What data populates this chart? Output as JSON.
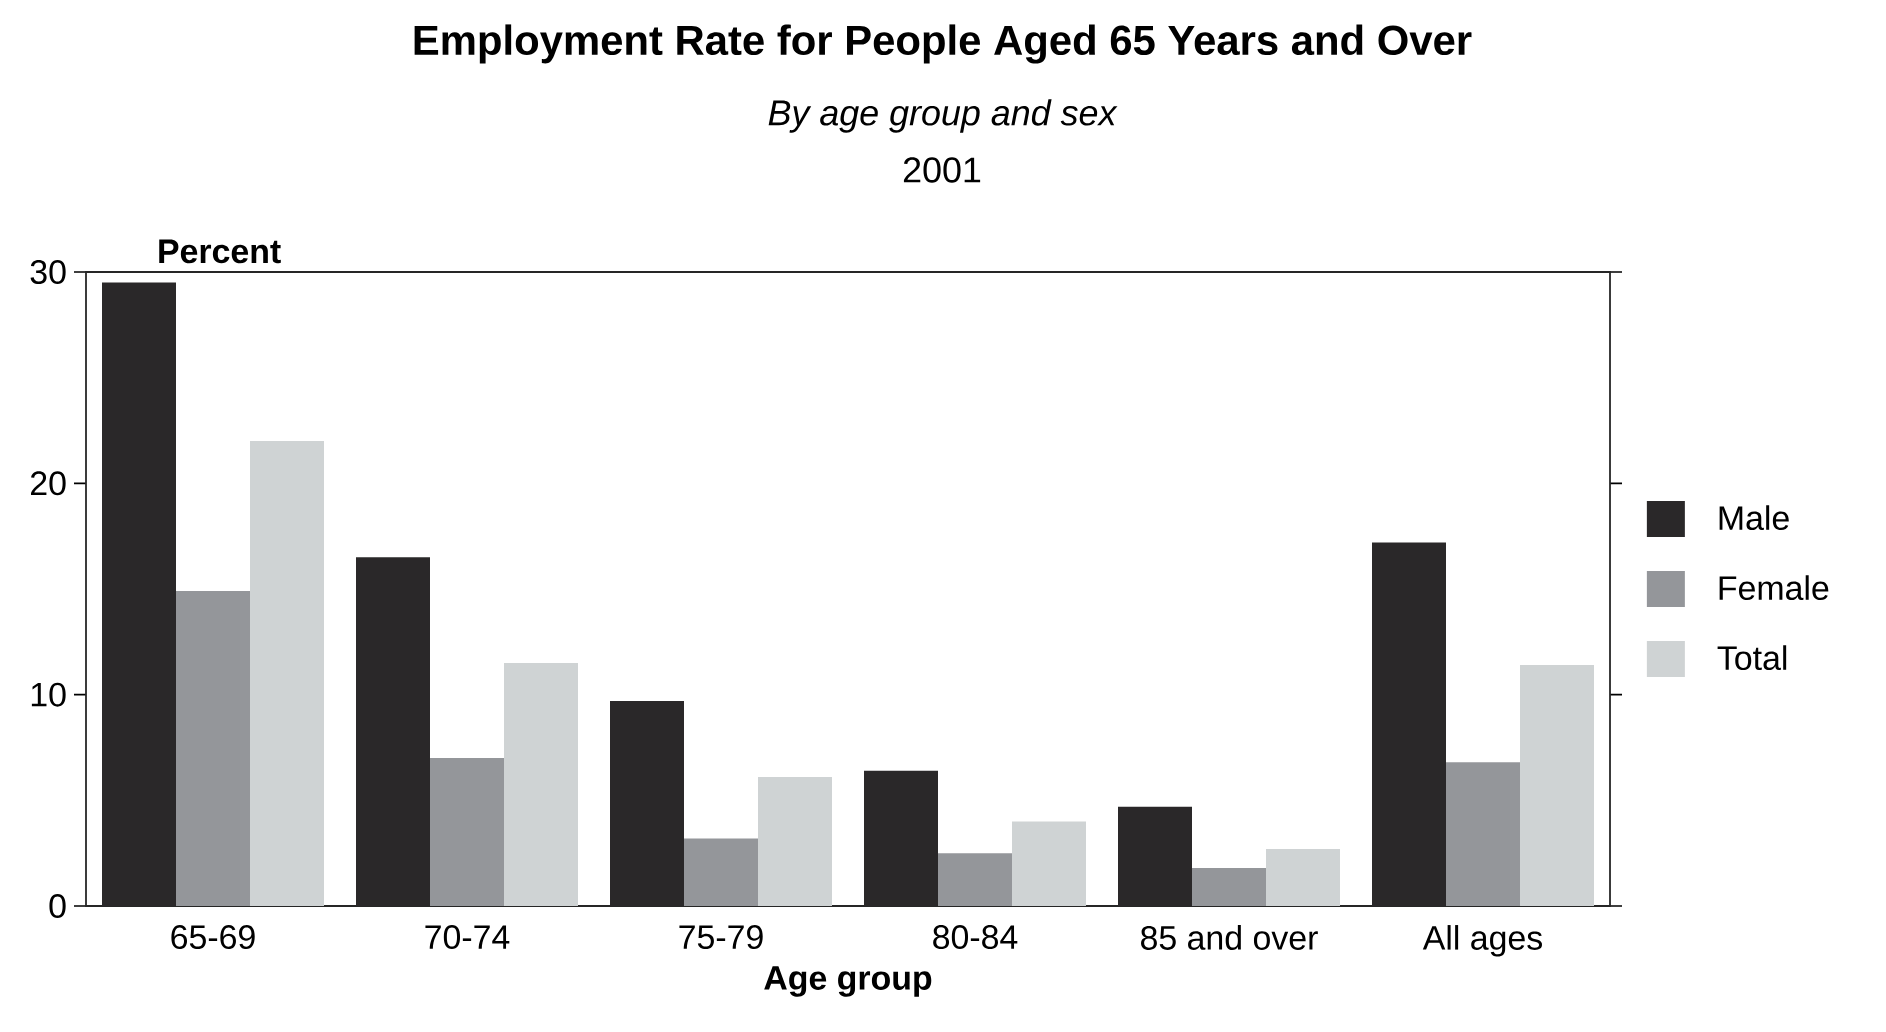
{
  "chart_data": {
    "type": "bar",
    "title": "Employment Rate for People Aged 65 Years and Over",
    "subtitle": "By age group and sex",
    "annotations": [
      "2001"
    ],
    "xlabel": "Age group",
    "ylabel": "Percent",
    "categories": [
      "65-69",
      "70-74",
      "75-79",
      "80-84",
      "85 and over",
      "All ages"
    ],
    "series": [
      {
        "name": "Male",
        "color": "#2a2829",
        "values": [
          29.5,
          16.5,
          9.7,
          6.4,
          4.7,
          17.2
        ]
      },
      {
        "name": "Female",
        "color": "#94969a",
        "values": [
          14.9,
          7.0,
          3.2,
          2.5,
          1.8,
          6.8
        ]
      },
      {
        "name": "Total",
        "color": "#cfd3d4",
        "values": [
          22.0,
          11.5,
          6.1,
          4.0,
          2.7,
          11.4
        ]
      }
    ],
    "ylim": [
      0,
      30
    ],
    "yticks": [
      0,
      10,
      20,
      30
    ],
    "legend": "right"
  }
}
